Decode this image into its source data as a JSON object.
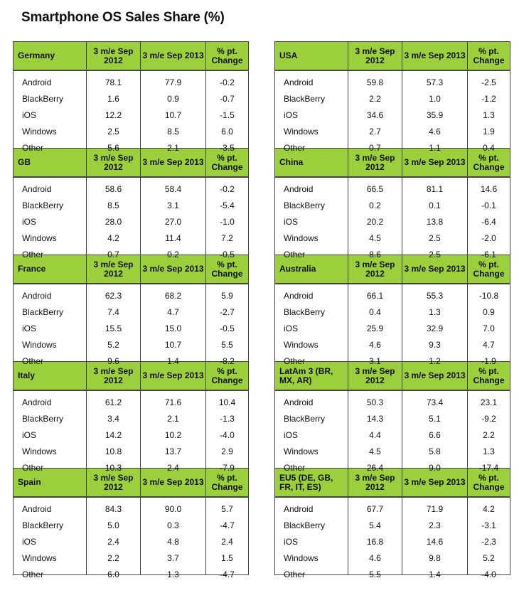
{
  "title": "Smartphone OS Sales Share (%)",
  "columns": {
    "c1": "3 m/e Sep 2012",
    "c2": "3 m/e Sep 2013",
    "c3": "% pt. Change"
  },
  "os_names": [
    "Android",
    "BlackBerry",
    "iOS",
    "Windows",
    "Other"
  ],
  "tables": {
    "germany": {
      "region": "Germany",
      "c1": [
        "78.1",
        "1.6",
        "12.2",
        "2.5",
        "5.6"
      ],
      "c2": [
        "77.9",
        "0.9",
        "10.7",
        "8.5",
        "2.1"
      ],
      "c3": [
        "-0.2",
        "-0.7",
        "-1.5",
        "6.0",
        "-3.5"
      ]
    },
    "gb": {
      "region": "GB",
      "c1": [
        "58.6",
        "8.5",
        "28.0",
        "4.2",
        "0.7"
      ],
      "c2": [
        "58.4",
        "3.1",
        "27.0",
        "11.4",
        "0.2"
      ],
      "c3": [
        "-0.2",
        "-5.4",
        "-1.0",
        "7.2",
        "-0.5"
      ]
    },
    "france": {
      "region": "France",
      "c1": [
        "62.3",
        "7.4",
        "15.5",
        "5.2",
        "9.6"
      ],
      "c2": [
        "68.2",
        "4.7",
        "15.0",
        "10.7",
        "1.4"
      ],
      "c3": [
        "5.9",
        "-2.7",
        "-0.5",
        "5.5",
        "-8.2"
      ]
    },
    "italy": {
      "region": "Italy",
      "c1": [
        "61.2",
        "3.4",
        "14.2",
        "10.8",
        "10.3"
      ],
      "c2": [
        "71.6",
        "2.1",
        "10.2",
        "13.7",
        "2.4"
      ],
      "c3": [
        "10.4",
        "-1.3",
        "-4.0",
        "2.9",
        "-7.9"
      ]
    },
    "spain": {
      "region": "Spain",
      "c1": [
        "84.3",
        "5.0",
        "2.4",
        "2.2",
        "6.0"
      ],
      "c2": [
        "90.0",
        "0.3",
        "4.8",
        "3.7",
        "1.3"
      ],
      "c3": [
        "5.7",
        "-4.7",
        "2.4",
        "1.5",
        "-4.7"
      ]
    },
    "usa": {
      "region": "USA",
      "c1": [
        "59.8",
        "2.2",
        "34.6",
        "2.7",
        "0.7"
      ],
      "c2": [
        "57.3",
        "1.0",
        "35.9",
        "4.6",
        "1.1"
      ],
      "c3": [
        "-2.5",
        "-1.2",
        "1.3",
        "1.9",
        "0.4"
      ]
    },
    "china": {
      "region": "China",
      "c1": [
        "66.5",
        "0.2",
        "20.2",
        "4.5",
        "8.6"
      ],
      "c2": [
        "81.1",
        "0.1",
        "13.8",
        "2.5",
        "2.5"
      ],
      "c3": [
        "14.6",
        "-0.1",
        "-6.4",
        "-2.0",
        "-6.1"
      ]
    },
    "australia": {
      "region": "Australia",
      "c1": [
        "66.1",
        "0.4",
        "25.9",
        "4.6",
        "3.1"
      ],
      "c2": [
        "55.3",
        "1.3",
        "32.9",
        "9.3",
        "1.2"
      ],
      "c3": [
        "-10.8",
        "0.9",
        "7.0",
        "4.7",
        "-1.9"
      ]
    },
    "latam": {
      "region": "LatAm 3 (BR, MX, AR)",
      "c1": [
        "50.3",
        "14.3",
        "4.4",
        "4.5",
        "26.4"
      ],
      "c2": [
        "73.4",
        "5.1",
        "6.6",
        "5.8",
        "9.0"
      ],
      "c3": [
        "23.1",
        "-9.2",
        "2.2",
        "1.3",
        "-17.4"
      ]
    },
    "eu5": {
      "region": "EU5 (DE, GB, FR, IT, ES)",
      "c1": [
        "67.7",
        "5.4",
        "16.8",
        "4.6",
        "5.5"
      ],
      "c2": [
        "71.9",
        "2.3",
        "14.6",
        "9.8",
        "1.4"
      ],
      "c3": [
        "4.2",
        "-3.1",
        "-2.3",
        "5.2",
        "-4.0"
      ]
    }
  }
}
